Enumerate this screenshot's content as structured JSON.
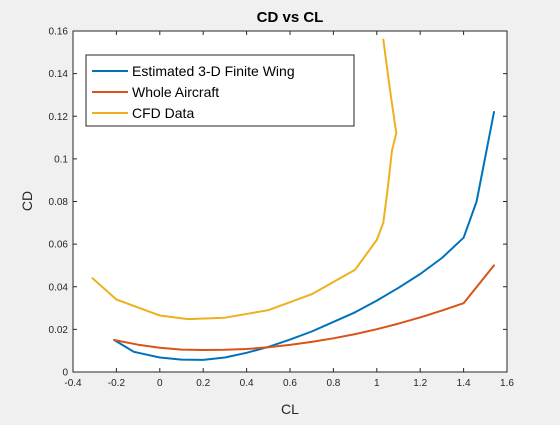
{
  "chart_data": {
    "type": "line",
    "title": "CD vs CL",
    "xlabel": "CL",
    "ylabel": "CD",
    "xlim": [
      -0.4,
      1.6
    ],
    "ylim": [
      0,
      0.16
    ],
    "xticks": [
      -0.4,
      -0.2,
      0,
      0.2,
      0.4,
      0.6,
      0.8,
      1,
      1.2,
      1.4,
      1.6
    ],
    "xtick_labels": [
      "-0.4",
      "-0.2",
      "0",
      "0.2",
      "0.4",
      "0.6",
      "0.8",
      "1",
      "1.2",
      "1.4",
      "1.6"
    ],
    "yticks": [
      0,
      0.02,
      0.04,
      0.06,
      0.08,
      0.1,
      0.12,
      0.14,
      0.16
    ],
    "ytick_labels": [
      "0",
      "0.02",
      "0.04",
      "0.06",
      "0.08",
      "0.1",
      "0.12",
      "0.14",
      "0.16"
    ],
    "grid": false,
    "legend_position": "top-left",
    "series": [
      {
        "name": "Estimated 3-D Finite Wing",
        "color": "#0072BD",
        "x": [
          -0.21,
          -0.12,
          0.0,
          0.1,
          0.2,
          0.3,
          0.4,
          0.5,
          0.6,
          0.7,
          0.8,
          0.9,
          1.0,
          1.1,
          1.2,
          1.3,
          1.4,
          1.46,
          1.54
        ],
        "y": [
          0.015,
          0.0095,
          0.0068,
          0.0058,
          0.0057,
          0.0068,
          0.009,
          0.0118,
          0.0152,
          0.019,
          0.0235,
          0.028,
          0.0335,
          0.0395,
          0.046,
          0.0535,
          0.063,
          0.08,
          0.122
        ]
      },
      {
        "name": "Whole Aircraft",
        "color": "#D95319",
        "x": [
          -0.21,
          -0.1,
          0.0,
          0.1,
          0.2,
          0.3,
          0.4,
          0.5,
          0.6,
          0.7,
          0.8,
          0.9,
          1.0,
          1.1,
          1.2,
          1.3,
          1.4,
          1.54
        ],
        "y": [
          0.015,
          0.0128,
          0.0114,
          0.0105,
          0.0103,
          0.0104,
          0.0108,
          0.0116,
          0.0127,
          0.0141,
          0.0158,
          0.0178,
          0.0201,
          0.0227,
          0.0256,
          0.0288,
          0.0323,
          0.05
        ]
      },
      {
        "name": "CFD Data",
        "color": "#EDB120",
        "x": [
          -0.31,
          -0.2,
          0.0,
          0.13,
          0.3,
          0.5,
          0.7,
          0.9,
          1.0,
          1.03,
          1.05,
          1.07,
          1.09,
          1.06,
          1.03
        ],
        "y": [
          0.044,
          0.034,
          0.0265,
          0.0248,
          0.0255,
          0.029,
          0.0365,
          0.048,
          0.062,
          0.07,
          0.086,
          0.104,
          0.112,
          0.133,
          0.156
        ]
      }
    ]
  }
}
